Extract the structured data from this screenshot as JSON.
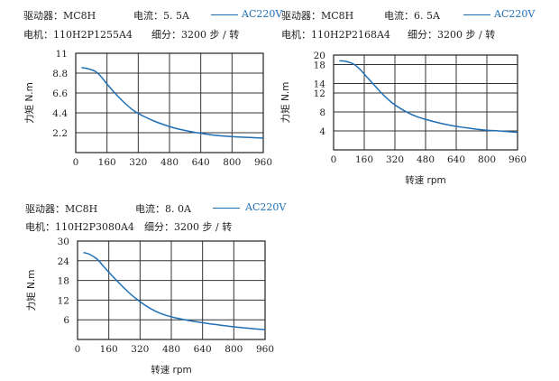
{
  "chart_data": [
    {
      "type": "line",
      "driver_label": "驱动器：MC8H",
      "current_label": "电流：5. 5A",
      "motor_label": "电机：110H2P1255A4",
      "subdivision_label": "细分：3200 步 / 转",
      "legend": "AC220V",
      "ylabel": "力矩  N.m",
      "xlabel": "",
      "xlim": [
        0,
        960
      ],
      "ylim": [
        0,
        11
      ],
      "xticks": [
        "0",
        "160",
        "320",
        "480",
        "640",
        "800",
        "960"
      ],
      "yticks": [
        "2.2",
        "4.4",
        "6.6",
        "8.8",
        "11"
      ],
      "series": [
        {
          "name": "AC220V",
          "x": [
            30,
            60,
            100,
            130,
            160,
            200,
            250,
            300,
            350,
            400,
            450,
            500,
            560,
            620,
            700,
            780,
            860,
            960
          ],
          "y": [
            9.4,
            9.3,
            9.0,
            8.4,
            7.6,
            6.6,
            5.5,
            4.6,
            4.0,
            3.5,
            3.1,
            2.75,
            2.45,
            2.2,
            1.95,
            1.8,
            1.7,
            1.6
          ]
        }
      ]
    },
    {
      "type": "line",
      "driver_label": "驱动器：MC8H",
      "current_label": "电流：6. 5A",
      "motor_label": "电机：110H2P2168A4",
      "subdivision_label": "细分：3200 步 / 转",
      "legend": "AC220V",
      "ylabel": "力矩  N.m",
      "xlabel": "转速  rpm",
      "xlim": [
        0,
        960
      ],
      "ylim": [
        0,
        20
      ],
      "xticks": [
        "0",
        "160",
        "320",
        "480",
        "640",
        "800",
        "960"
      ],
      "yticks": [
        "4",
        "8",
        "12",
        "14",
        "18",
        "20"
      ],
      "series": [
        {
          "name": "AC220V",
          "x": [
            30,
            60,
            100,
            130,
            160,
            200,
            250,
            300,
            350,
            400,
            450,
            500,
            560,
            620,
            700,
            780,
            860,
            960
          ],
          "y": [
            18.8,
            18.7,
            18.2,
            17.3,
            16.0,
            14.2,
            12.0,
            10.1,
            8.7,
            7.6,
            6.8,
            6.2,
            5.6,
            5.1,
            4.6,
            4.2,
            4.0,
            3.7
          ]
        }
      ]
    },
    {
      "type": "line",
      "driver_label": "驱动器：MC8H",
      "current_label": "电流：8. 0A",
      "motor_label": "电机：110H2P3080A4",
      "subdivision_label": "细分：3200 步 / 转",
      "legend": "AC220V",
      "ylabel": "力矩  N.m",
      "xlabel": "转速  rpm",
      "xlim": [
        0,
        960
      ],
      "ylim": [
        0,
        30
      ],
      "xticks": [
        "0",
        "160",
        "320",
        "480",
        "640",
        "800",
        "960"
      ],
      "yticks": [
        "6",
        "12",
        "18",
        "24",
        "30"
      ],
      "series": [
        {
          "name": "AC220V",
          "x": [
            30,
            60,
            100,
            130,
            160,
            200,
            250,
            300,
            350,
            400,
            450,
            500,
            560,
            620,
            700,
            780,
            860,
            960
          ],
          "y": [
            26.5,
            26.0,
            24.5,
            22.5,
            20.5,
            18.0,
            15.0,
            12.4,
            10.3,
            8.6,
            7.4,
            6.6,
            5.9,
            5.3,
            4.6,
            4.0,
            3.5,
            3.0
          ]
        }
      ]
    }
  ]
}
